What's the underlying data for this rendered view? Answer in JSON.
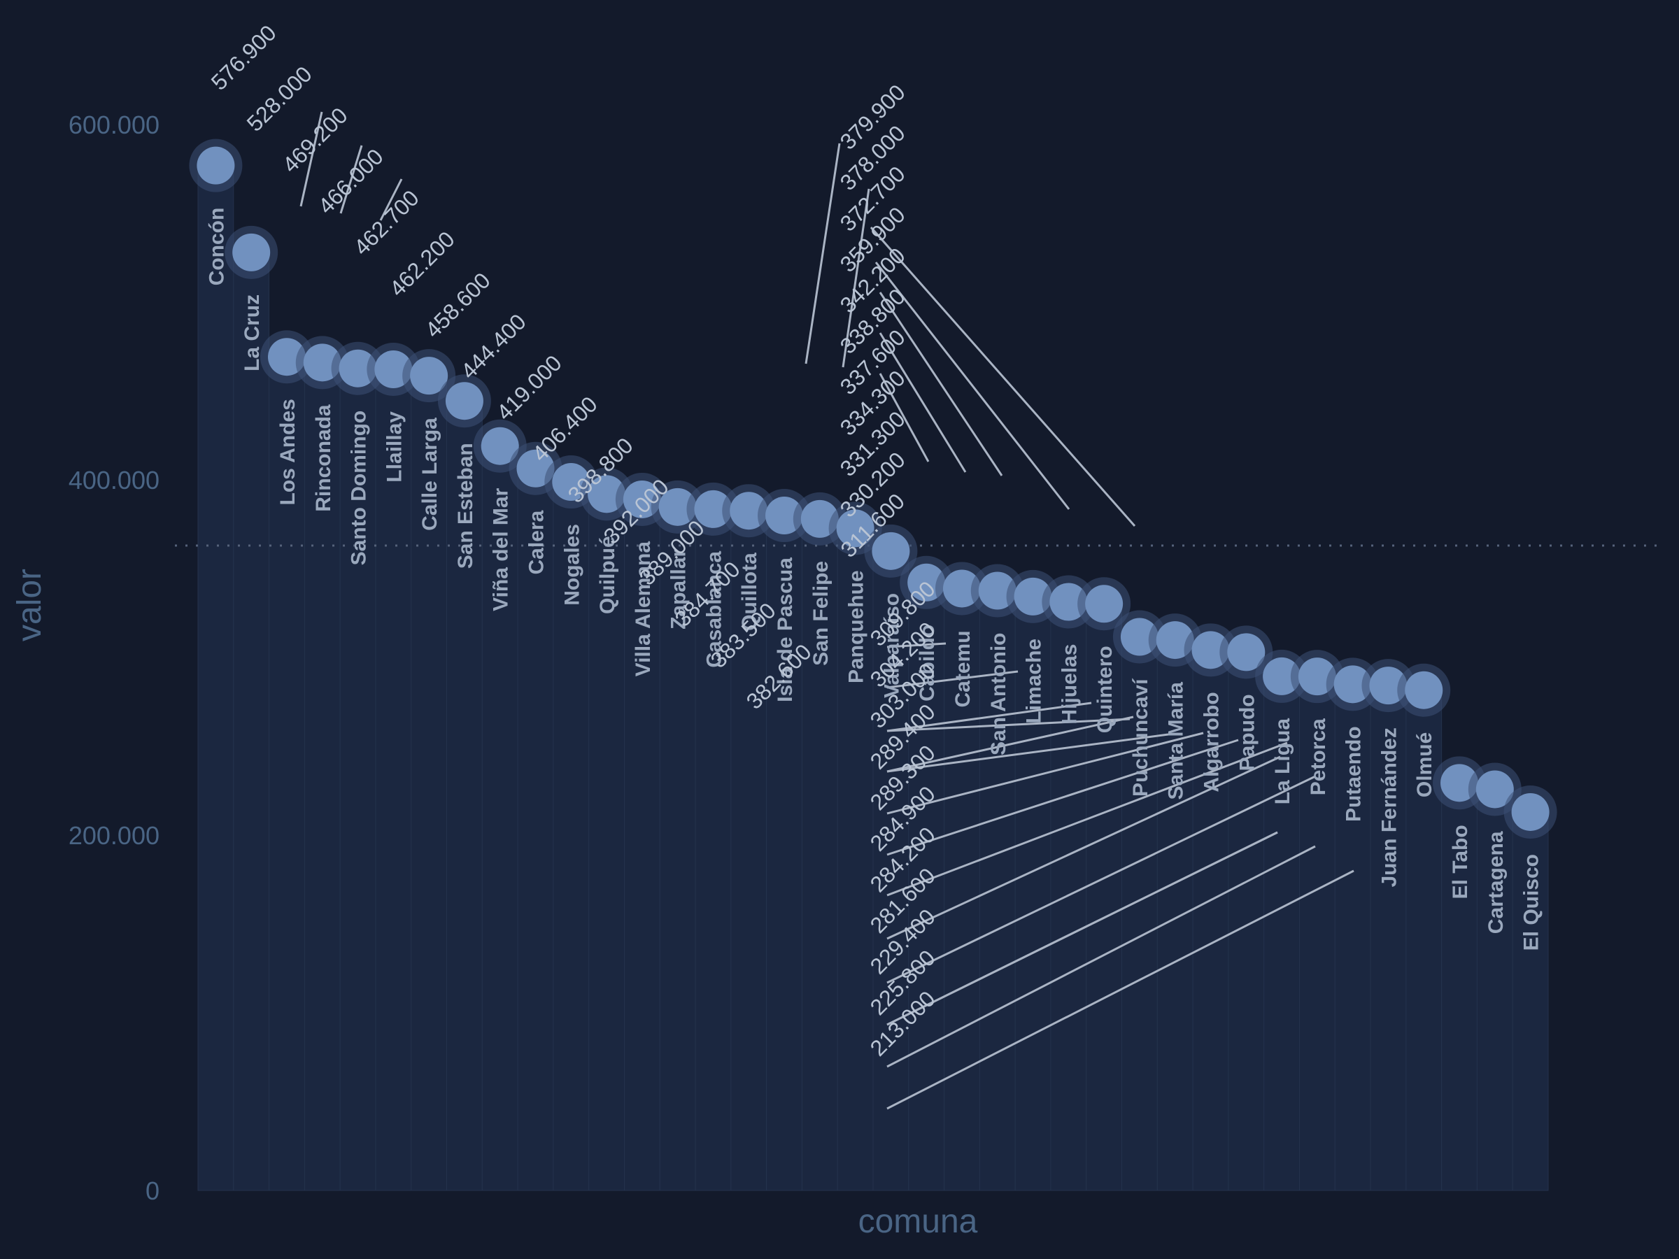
{
  "chart_data": {
    "type": "scatter",
    "xlabel": "comuna",
    "ylabel": "valor",
    "ylim": [
      0,
      600000
    ],
    "yticks": [
      0,
      200000,
      400000,
      600000
    ],
    "ytick_labels": [
      "0",
      "200.000",
      "400.000",
      "600.000"
    ],
    "reference_line": 363000,
    "grid": true,
    "colors": {
      "background": "#131a2b",
      "column": "#1b2740",
      "point": "#7191bf",
      "halo": "#3c5075",
      "leader": "#aab4c4"
    },
    "categories": [
      "Concón",
      "La Cruz",
      "Los Andes",
      "Rinconada",
      "Santo Domingo",
      "Llaillay",
      "Calle Larga",
      "San Esteban",
      "Viña del Mar",
      "Calera",
      "Nogales",
      "Quilpué",
      "Villa Alemana",
      "Zapallar",
      "Casablanca",
      "Quillota",
      "Isla de Pascua",
      "San Felipe",
      "Panquehue",
      "Valparaíso",
      "Cabildo",
      "Catemu",
      "San Antonio",
      "Limache",
      "Hijuelas",
      "Quintero",
      "Puchuncaví",
      "Santa María",
      "Algarrobo",
      "Papudo",
      "La Ligua",
      "Petorca",
      "Putaendo",
      "Juan Fernández",
      "Olmué",
      "El Tabo",
      "Cartagena",
      "El Quisco"
    ],
    "values": [
      576900,
      528000,
      469200,
      466000,
      462700,
      462200,
      458600,
      444400,
      419000,
      406400,
      398800,
      392000,
      389000,
      384700,
      383500,
      382600,
      379900,
      378000,
      372700,
      359900,
      342200,
      338800,
      337600,
      334300,
      331300,
      330200,
      311600,
      309800,
      304200,
      303000,
      289400,
      289300,
      284900,
      284200,
      281600,
      229400,
      225800,
      213000
    ],
    "value_labels": [
      "576.900",
      "528.000",
      "469.200",
      "466.000",
      "462.700",
      "462.200",
      "458.600",
      "444.400",
      "419.000",
      "406.400",
      "398.800",
      "392.000",
      "389.000",
      "384.700",
      "383.500",
      "382.600",
      "379.900",
      "378.000",
      "372.700",
      "359.900",
      "342.200",
      "338.800",
      "337.600",
      "334.300",
      "331.300",
      "330.200",
      "311.600",
      "309.800",
      "304.200",
      "303.000",
      "289.400",
      "289.300",
      "284.900",
      "284.200",
      "281.600",
      "229.400",
      "225.800",
      "213.000"
    ]
  }
}
